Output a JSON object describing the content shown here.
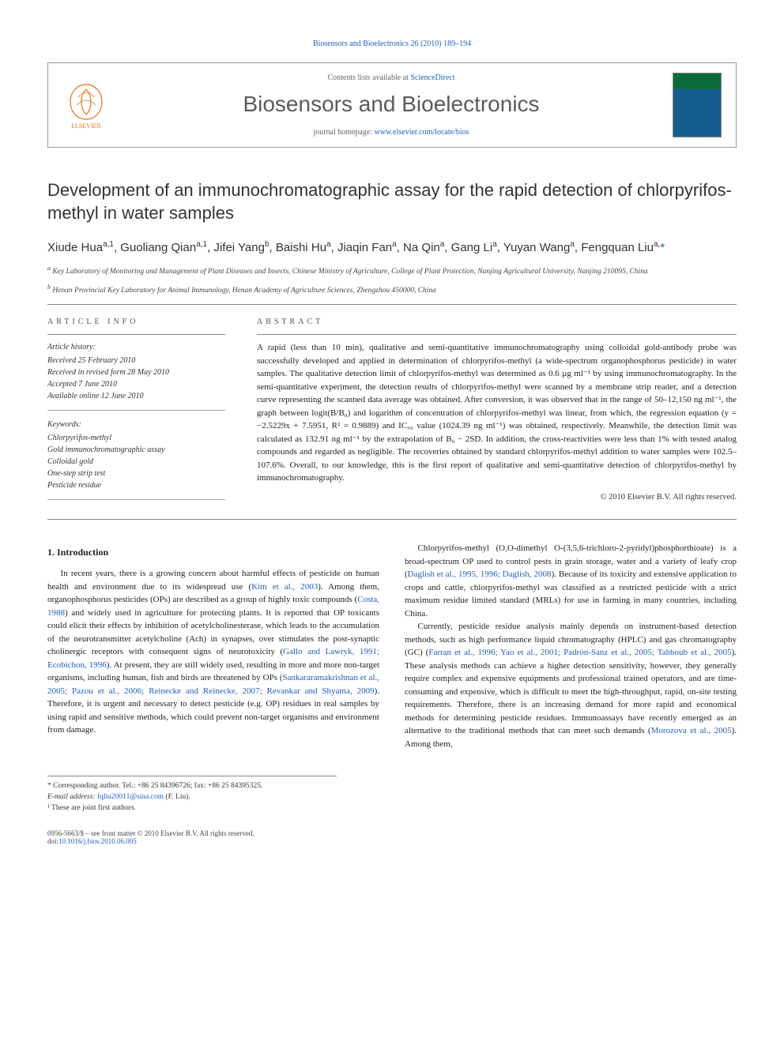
{
  "header": {
    "journal_ref": "Biosensors and Bioelectronics 26 (2010) 189–194",
    "contents_prefix": "Contents lists available at ",
    "contents_link": "ScienceDirect",
    "journal_name": "Biosensors and Bioelectronics",
    "homepage_prefix": "journal homepage: ",
    "homepage_link": "www.elsevier.com/locate/bios",
    "publisher": "ELSEVIER"
  },
  "title": "Development of an immunochromatographic assay for the rapid detection of chlorpyrifos-methyl in water samples",
  "authors_html": "Xiude Hua<sup>a,1</sup>, Guoliang Qian<sup>a,1</sup>, Jifei Yang<sup>b</sup>, Baishi Hu<sup>a</sup>, Jiaqin Fan<sup>a</sup>, Na Qin<sup>a</sup>, Gang Li<sup>a</sup>, Yuyan Wang<sup>a</sup>, Fengquan Liu<sup>a,</sup>",
  "corresponding_mark": "*",
  "affiliations": {
    "a": "Key Laboratory of Monitoring and Management of Plant Diseases and Insects, Chinese Ministry of Agriculture, College of Plant Protection, Nanjing Agricultural University, Nanjing 210095, China",
    "b": "Henan Provincial Key Laboratory for Animal Immunology, Henan Academy of Agriculture Sciences, Zhengzhou 450000, China"
  },
  "article_info": {
    "heading": "ARTICLE INFO",
    "history_label": "Article history:",
    "history": [
      "Received 25 February 2010",
      "Received in revised form 28 May 2010",
      "Accepted 7 June 2010",
      "Available online 12 June 2010"
    ],
    "keywords_label": "Keywords:",
    "keywords": [
      "Chlorpyrifos-methyl",
      "Gold immunochromatographic assay",
      "Colloidal gold",
      "One-step strip test",
      "Pesticide residue"
    ]
  },
  "abstract": {
    "heading": "ABSTRACT",
    "text": "A rapid (less than 10 min), qualitative and semi-quantitative immunochromatography using colloidal gold-antibody probe was successfully developed and applied in determination of chlorpyrifos-methyl (a wide-spectrum organophosphorus pesticide) in water samples. The qualitative detection limit of chlorpyrifos-methyl was determined as 0.6 µg ml⁻¹ by using immunochromatography. In the semi-quantitative experiment, the detection results of chlorpyrifos-methyl were scanned by a membrane strip reader, and a detection curve representing the scanned data average was obtained. After conversion, it was observed that in the range of 50–12,150 ng ml⁻¹, the graph between logit(B/B₀) and logarithm of concentration of chlorpyrifos-methyl was linear, from which, the regression equation (y = −2.5229x + 7.5951, R² = 0.9889) and IC₅₀ value (1024.39 ng ml⁻¹) was obtained, respectively. Meanwhile, the detection limit was calculated as 132.91 ng ml⁻¹ by the extrapolation of B₀ − 2SD. In addition, the cross-reactivities were less than 1% with tested analog compounds and regarded as negligible. The recoveries obtained by standard chlorpyrifos-methyl addition to water samples were 102.5–107.6%. Overall, to our knowledge, this is the first report of qualitative and semi-quantitative detection of chlorpyrifos-methyl by immunochromatography.",
    "copyright": "© 2010 Elsevier B.V. All rights reserved."
  },
  "body": {
    "section_num": "1.",
    "section_title": "Introduction",
    "p1_pre": "In recent years, there is a growing concern about harmful effects of pesticide on human health and environment due to its widespread use (",
    "p1_ref1": "Kim et al., 2003",
    "p1_mid1": "). Among them, organophosphorus pesticides (OPs) are described as a group of highly toxic compounds (",
    "p1_ref2": "Costa, 1988",
    "p1_mid2": ") and widely used in agriculture for protecting plants. It is reported that OP toxicants could elicit their effects by inhibition of acetylcholinesterase, which leads to the accumulation of the neurotransmitter acetylcholine (Ach) in synapses, over stimulates the post-synaptic cholinergic receptors with consequent signs of neurotoxicity (",
    "p1_ref3": "Gallo and Lawryk, 1991; Ecobichon, 1996",
    "p1_mid3": "). At present, they are still widely used, resulting in more and more non-target organisms, including human, fish and birds are threatened by OPs (",
    "p1_ref4": "Sankararamakrishnan et al., 2005; Pazou et al., 2006; Reinecke and Reinecke, 2007; Revankar and Shyama, 2009",
    "p1_post": "). Therefore, it is urgent and necessary to detect pesticide (e.g. OP) residues in real sam",
    "p1c_post": "ples by using rapid and sensitive methods, which could prevent non-target organisms and environment from damage.",
    "p2_pre": "Chlorpyrifos-methyl (O,O-dimethyl O-(3,5,6-trichloro-2-pyridyl)phosphorthioate) is a broad-spectrum OP used to control pests in grain storage, water and a variety of leafy crop (",
    "p2_ref1": "Daglish et al., 1995, 1996; Daglish, 2008",
    "p2_post": "). Because of its toxicity and extensive application to crops and cattle, chlorpyrifos-methyl was classified as a restricted pesticide with a strict maximum residue limited standard (MRLs) for use in farming in many countries, including China.",
    "p3_pre": "Currently, pesticide residue analysis mainly depends on instrument-based detection methods, such as high performance liquid chromatography (HPLC) and gas chromatography (GC) (",
    "p3_ref1": "Farran et al., 1996; Yao et al., 2001; Padrón-Sanz et al., 2005; Tahboub et al., 2005",
    "p3_mid": "). These analysis methods can achieve a higher detection sensitivity, however, they generally require complex and expensive equipments and professional trained operators, and are time-consuming and expensive, which is difficult to meet the high-throughput, rapid, on-site testing requirements. Therefore, there is an increasing demand for more rapid and economical methods for determining pesticide residues. Immunoassays have recently emerged as an alternative to the traditional methods that can meet such demands (",
    "p3_ref2": "Morozova et al., 2005",
    "p3_post": "). Among them,"
  },
  "footnotes": {
    "corr_label": "* Corresponding author. Tel.: +86 25 84396726; fax: +86 25 84395325.",
    "email_label": "E-mail address:",
    "email": "fqliu20011@sina.com",
    "email_paren": "(F. Liu).",
    "note1": "¹ These are joint first authors."
  },
  "footer": {
    "left_line1": "0956-5663/$ – see front matter © 2010 Elsevier B.V. All rights reserved.",
    "left_line2_prefix": "doi:",
    "left_line2_link": "10.1016/j.bios.2010.06.005"
  },
  "colors": {
    "link": "#2060c0",
    "elsevier_orange": "#e67817",
    "rule": "#888888"
  }
}
